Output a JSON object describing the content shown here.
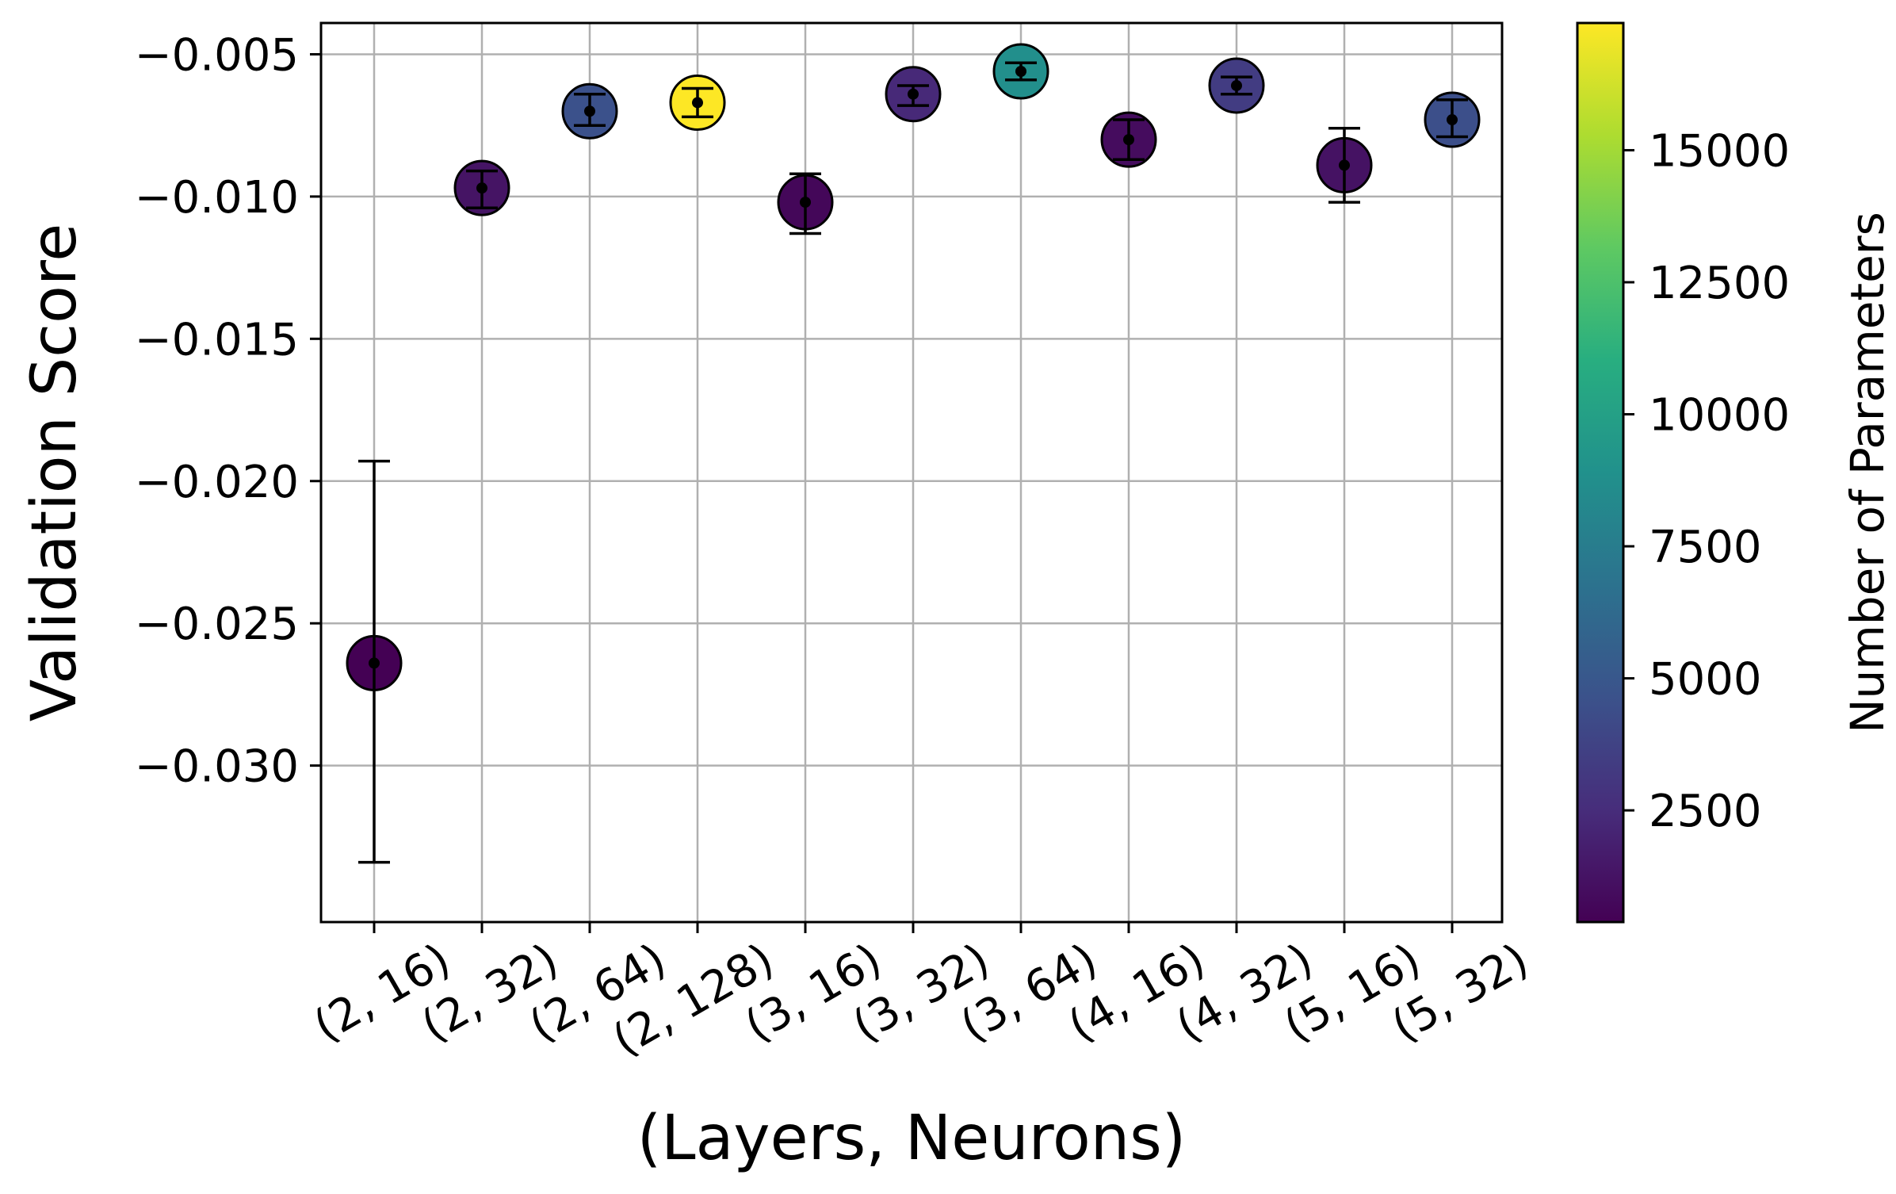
{
  "chart_data": {
    "type": "scatter",
    "title": "",
    "xlabel": "(Layers, Neurons)",
    "ylabel": "Validation Score",
    "colorbar_label": "Number of Parameters",
    "colormap": "viridis",
    "grid": true,
    "categories": [
      "(2, 16)",
      "(2, 32)",
      "(2, 64)",
      "(2, 128)",
      "(3, 16)",
      "(3, 32)",
      "(3, 64)",
      "(4, 16)",
      "(4, 32)",
      "(5, 16)",
      "(5, 32)"
    ],
    "values": [
      -0.0264,
      -0.0097,
      -0.007,
      -0.0067,
      -0.0102,
      -0.0064,
      -0.0056,
      -0.008,
      -0.0061,
      -0.0089,
      -0.0073
    ],
    "error_low": [
      -0.0334,
      -0.0104,
      -0.0075,
      -0.0072,
      -0.0113,
      -0.0068,
      -0.0059,
      -0.0087,
      -0.0064,
      -0.0102,
      -0.0079
    ],
    "error_high": [
      -0.0193,
      -0.0091,
      -0.0064,
      -0.0062,
      -0.0092,
      -0.0061,
      -0.0053,
      -0.0073,
      -0.0058,
      -0.0076,
      -0.0066
    ],
    "parameters": [
      385,
      1281,
      4609,
      17409,
      657,
      2337,
      8769,
      929,
      3393,
      1201,
      4449
    ],
    "ylim": [
      -0.0355,
      -0.0039
    ],
    "yticks": [
      -0.005,
      -0.01,
      -0.015,
      -0.02,
      -0.025,
      -0.03
    ],
    "ytick_labels": [
      "−0.005",
      "−0.010",
      "−0.015",
      "−0.020",
      "−0.025",
      "−0.030"
    ],
    "colorbar_range": [
      385,
      17409
    ],
    "colorbar_ticks": [
      2500,
      5000,
      7500,
      10000,
      12500,
      15000
    ],
    "colorbar_tick_labels": [
      "2500",
      "5000",
      "7500",
      "10000",
      "12500",
      "15000"
    ]
  }
}
